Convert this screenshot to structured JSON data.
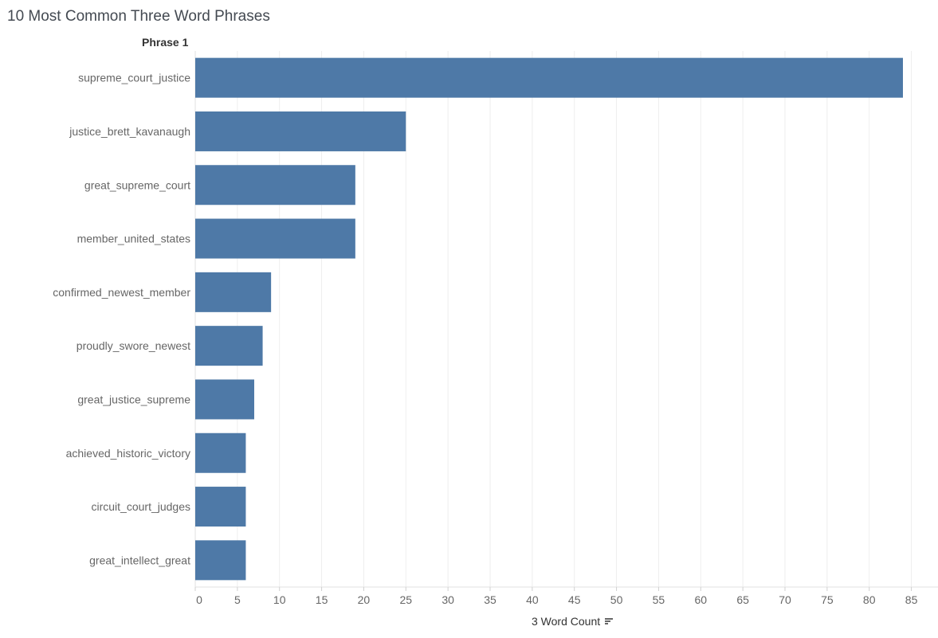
{
  "title": "10 Most Common Three Word Phrases",
  "row_header": "Phrase 1",
  "x_axis_title": "3 Word Count",
  "sort_icon": "sort-descending-icon",
  "chart_data": {
    "type": "bar",
    "orientation": "horizontal",
    "categories": [
      "supreme_court_justice",
      "justice_brett_kavanaugh",
      "great_supreme_court",
      "member_united_states",
      "confirmed_newest_member",
      "proudly_swore_newest",
      "great_justice_supreme",
      "achieved_historic_victory",
      "circuit_court_judges",
      "great_intellect_great"
    ],
    "values": [
      84,
      25,
      19,
      19,
      9,
      8,
      7,
      6,
      6,
      6
    ],
    "xlabel": "3 Word Count",
    "ylabel": "Phrase 1",
    "xticks": [
      0,
      5,
      10,
      15,
      20,
      25,
      30,
      35,
      40,
      45,
      50,
      55,
      60,
      65,
      70,
      75,
      80,
      85
    ],
    "xlim": [
      0,
      88
    ],
    "grid": true,
    "bar_color": "#4e79a7",
    "grid_color": "#eeeeee"
  }
}
